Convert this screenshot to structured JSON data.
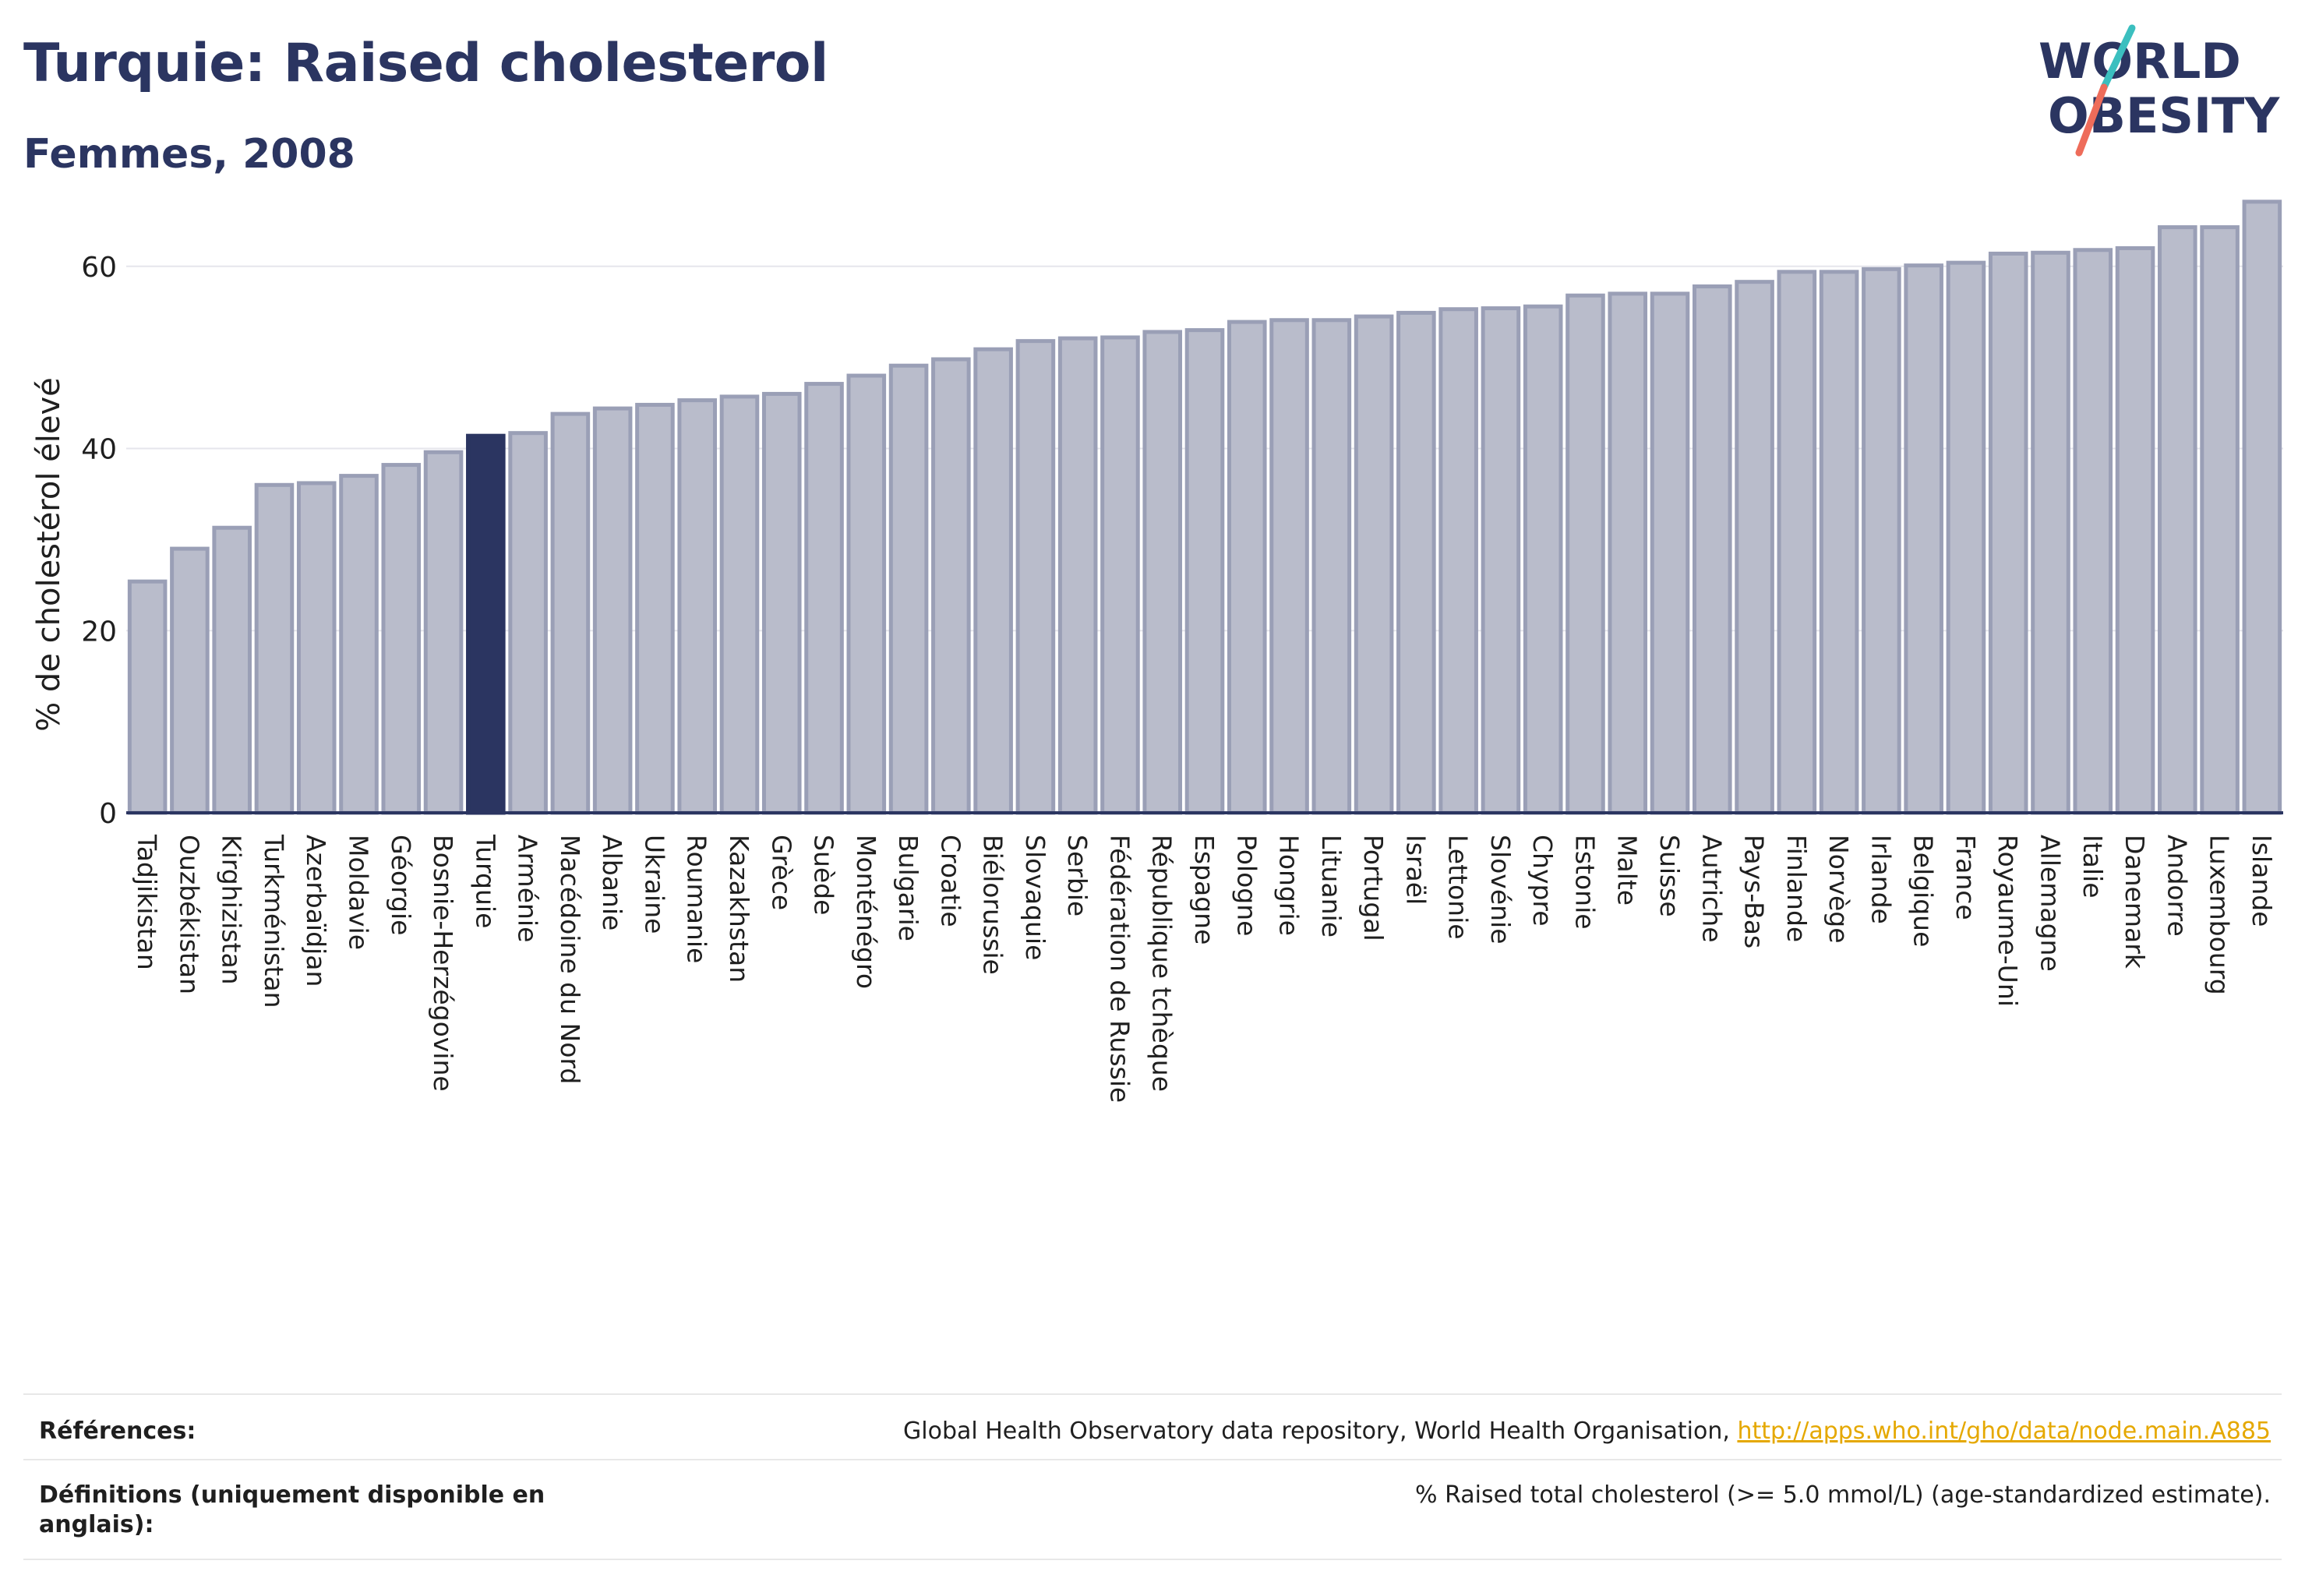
{
  "header": {
    "title": "Turquie: Raised cholesterol",
    "subtitle": "Femmes, 2008"
  },
  "logo": {
    "line1": "WORLD",
    "line2": "OBESITY",
    "colors": {
      "text": "#2b3561",
      "teal": "#3bbfbf",
      "coral": "#ee6c5a"
    }
  },
  "colors": {
    "bar_default": "#b9bccb",
    "bar_default_stroke": "#9a9fb6",
    "bar_highlight": "#2b3561",
    "axis": "#2b3561",
    "grid": "#e6e6ec"
  },
  "chart_data": {
    "type": "bar",
    "title": "Turquie: Raised cholesterol",
    "subtitle": "Femmes, 2008",
    "xlabel": "",
    "ylabel": "% de cholestérol élevé",
    "ylim": [
      0,
      67
    ],
    "yticks": [
      0,
      20,
      40,
      60
    ],
    "grid": true,
    "highlight": "Turquie",
    "categories": [
      "Tadjikistan",
      "Ouzbékistan",
      "Kirghizistan",
      "Turkménistan",
      "Azerbaïdjan",
      "Moldavie",
      "Géorgie",
      "Bosnie-Herzégovine",
      "Turquie",
      "Arménie",
      "Macédoine du Nord",
      "Albanie",
      "Ukraine",
      "Roumanie",
      "Kazakhstan",
      "Grèce",
      "Suède",
      "Monténégro",
      "Bulgarie",
      "Croatie",
      "Biélorussie",
      "Slovaquie",
      "Serbie",
      "Fédération de Russie",
      "République tchèque",
      "Espagne",
      "Pologne",
      "Hongrie",
      "Lituanie",
      "Portugal",
      "Israël",
      "Lettonie",
      "Slovénie",
      "Chypre",
      "Estonie",
      "Malte",
      "Suisse",
      "Autriche",
      "Pays-Bas",
      "Finlande",
      "Norvège",
      "Irlande",
      "Belgique",
      "France",
      "Royaume-Uni",
      "Allemagne",
      "Italie",
      "Danemark",
      "Andorre",
      "Luxembourg",
      "Islande"
    ],
    "values": [
      25.4,
      29.0,
      31.3,
      36.0,
      36.2,
      37.0,
      38.2,
      39.6,
      41.4,
      41.7,
      43.8,
      44.4,
      44.8,
      45.3,
      45.7,
      46.0,
      47.1,
      48.0,
      49.1,
      49.8,
      50.9,
      51.8,
      52.1,
      52.2,
      52.8,
      53.0,
      53.9,
      54.1,
      54.1,
      54.5,
      54.9,
      55.3,
      55.4,
      55.6,
      56.8,
      57.0,
      57.0,
      57.8,
      58.3,
      59.4,
      59.4,
      59.7,
      60.1,
      60.4,
      61.4,
      61.5,
      61.8,
      62.0,
      64.3,
      64.3,
      67.1
    ]
  },
  "footer": {
    "references_label": "Références:",
    "references_text": "Global Health Observatory data repository, World Health Organisation, ",
    "references_link": "http://apps.who.int/gho/data/node.main.A885",
    "definitions_label": "Définitions (uniquement disponible en anglais):",
    "definitions_text": "% Raised total cholesterol (>= 5.0 mmol/L) (age-standardized estimate)."
  }
}
